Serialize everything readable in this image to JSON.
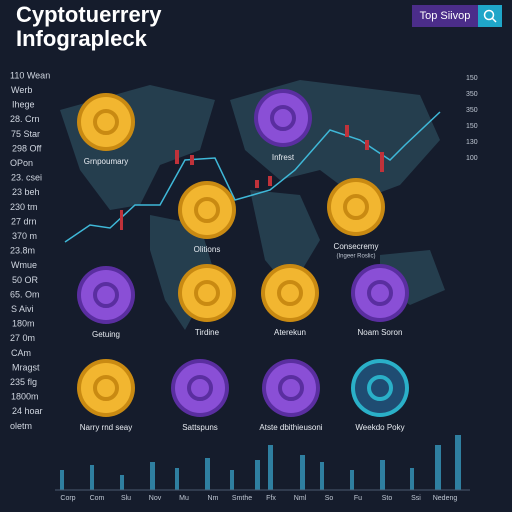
{
  "header": {
    "title_lines": [
      "Cyptotuerrery",
      "Infograpleck"
    ],
    "button": "Top Siivop"
  },
  "left_labels": [
    "110 Wean",
    "Werb",
    "Ihege",
    "28. Crn",
    "75 Star",
    "298 Off",
    "OPon",
    "23. csei",
    "23 beh",
    "230 tm",
    "27 drn",
    "370 m",
    "23.8m",
    "Wmue",
    "50 OR",
    "65. Om",
    "S Aivi",
    "180m",
    "27 0m",
    "CAm",
    "Mragst",
    "235 flg",
    "1800m",
    "24 hoar",
    "oletm"
  ],
  "right_labels": [
    "150",
    "350",
    "350",
    "150",
    "130",
    "100"
  ],
  "coins": [
    {
      "label": "Grnpoumary"
    },
    {
      "label": "Infrest"
    },
    {
      "label": "Olitions"
    },
    {
      "label": "Consecremy",
      "sub": "(Ingeer Roslic)"
    },
    {
      "label": "Getuing"
    },
    {
      "label": "Tirdine"
    },
    {
      "label": "Aterekun"
    },
    {
      "label": "Noam Soron"
    },
    {
      "label": "Narry rnd seay"
    },
    {
      "label": "Sattspuns"
    },
    {
      "label": "Atste dbithieusoni"
    },
    {
      "label": "Weekdo Poky"
    }
  ],
  "bottom_labels": [
    "Corp",
    "Com",
    "Slu",
    "Nov",
    "Mu",
    "Nm",
    "Smthe",
    "Ffx",
    "Nml",
    "So",
    "Fu",
    "Sto",
    "Ssi",
    "Nedeng"
  ]
}
